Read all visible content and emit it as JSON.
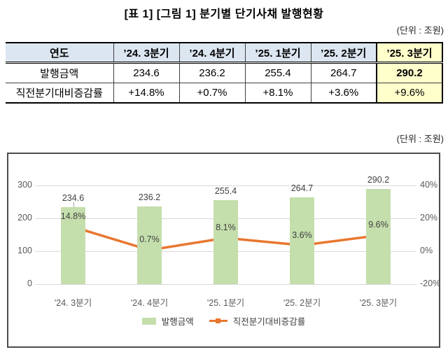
{
  "title": "[표 1] [그림 1] 분기별 단기사채 발행현황",
  "unit_label": "(단위 : 조원)",
  "table": {
    "header_row": [
      "연도",
      "’24. 3분기",
      "’24. 4분기",
      "’25. 1분기",
      "’25. 2분기",
      "’25. 3분기"
    ],
    "rows": [
      {
        "label": "발행금액",
        "values": [
          "234.6",
          "236.2",
          "255.4",
          "264.7",
          "290.2"
        ]
      },
      {
        "label": "직전분기대비증감률",
        "values": [
          "+14.8%",
          "+0.7%",
          "+8.1%",
          "+3.6%",
          "+9.6%"
        ]
      }
    ],
    "highlight_column": "’25. 3분기"
  },
  "chart_data": {
    "type": "bar+line",
    "categories": [
      "'24. 3분기",
      "'24. 4분기",
      "'25. 1분기",
      "'25. 2분기",
      "'25. 3분기"
    ],
    "series": [
      {
        "name": "발행금액",
        "type": "bar",
        "axis": "left",
        "values": [
          234.6,
          236.2,
          255.4,
          264.7,
          290.2
        ],
        "labels": [
          "234.6",
          "236.2",
          "255.4",
          "264.7",
          "290.2"
        ],
        "color": "#c4deac"
      },
      {
        "name": "직전분기대비증감률",
        "type": "line",
        "axis": "right",
        "values": [
          14.8,
          0.7,
          8.1,
          3.6,
          9.6
        ],
        "labels": [
          "14.8%",
          "0.7%",
          "8.1%",
          "3.6%",
          "9.6%"
        ],
        "color": "#e8772f"
      }
    ],
    "left_axis": {
      "range": [
        0,
        300
      ],
      "ticks": [
        "300",
        "200",
        "100",
        "0"
      ]
    },
    "right_axis": {
      "range": [
        -20,
        40
      ],
      "ticks": [
        "40%",
        "20%",
        "0%",
        "-20%"
      ]
    },
    "grid": true,
    "legend_position": "bottom"
  },
  "colors": {
    "bar": "#c4deac",
    "line": "#e8772f",
    "grid": "#d9d9d9",
    "axis_text": "#595959",
    "header_bg": "#dce6f1",
    "highlight_bg": "#ffffcc"
  }
}
